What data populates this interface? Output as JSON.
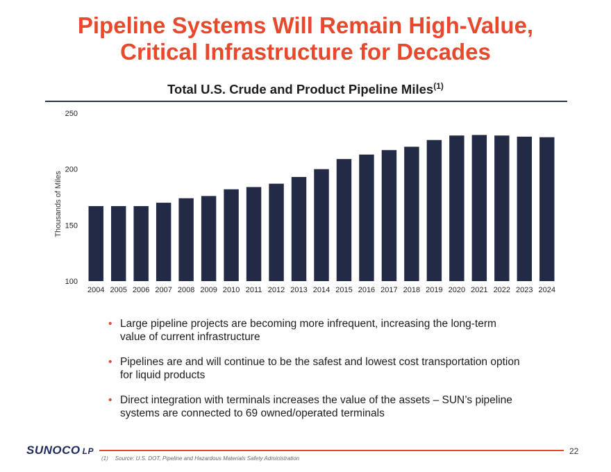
{
  "slide": {
    "title_line1": "Pipeline Systems Will Remain High-Value,",
    "title_line2": "Critical Infrastructure for Decades",
    "subtitle": "Total U.S. Crude and Product Pipeline Miles",
    "subtitle_sup": "(1)",
    "bullets": [
      "Large pipeline projects are becoming more infrequent, increasing the long-term value of current infrastructure",
      "Pipelines are and will continue to be the safest and lowest cost transportation option for liquid products",
      "Direct integration with terminals increases the value of the assets – SUN’s pipeline systems are connected to 69 owned/operated terminals"
    ],
    "bullet_char": "•",
    "logo_text": "SUNOCO",
    "logo_suffix": "LP",
    "page_number": "22",
    "footnote_marker": "(1)",
    "footnote_text": "Source: U.S. DOT, Pipeline and Hazardous Materials Safety Administration",
    "colors": {
      "accent": "#e8482c",
      "bar": "#232a45",
      "rule": "#2b2f45"
    }
  },
  "chart_data": {
    "type": "bar",
    "title": "Total U.S. Crude and Product Pipeline Miles",
    "xlabel": "",
    "ylabel": "Thousands of Miles",
    "ylim": [
      100,
      250
    ],
    "yticks": [
      100,
      150,
      200,
      250
    ],
    "grid": false,
    "categories": [
      "2004",
      "2005",
      "2006",
      "2007",
      "2008",
      "2009",
      "2010",
      "2011",
      "2012",
      "2013",
      "2014",
      "2015",
      "2016",
      "2017",
      "2018",
      "2019",
      "2020",
      "2021",
      "2022",
      "2023",
      "2024"
    ],
    "values": [
      167,
      167,
      167,
      170,
      174,
      176,
      182,
      184,
      187,
      193,
      200,
      209,
      213,
      217,
      220,
      226,
      230,
      230.5,
      230,
      229,
      228.5
    ]
  }
}
